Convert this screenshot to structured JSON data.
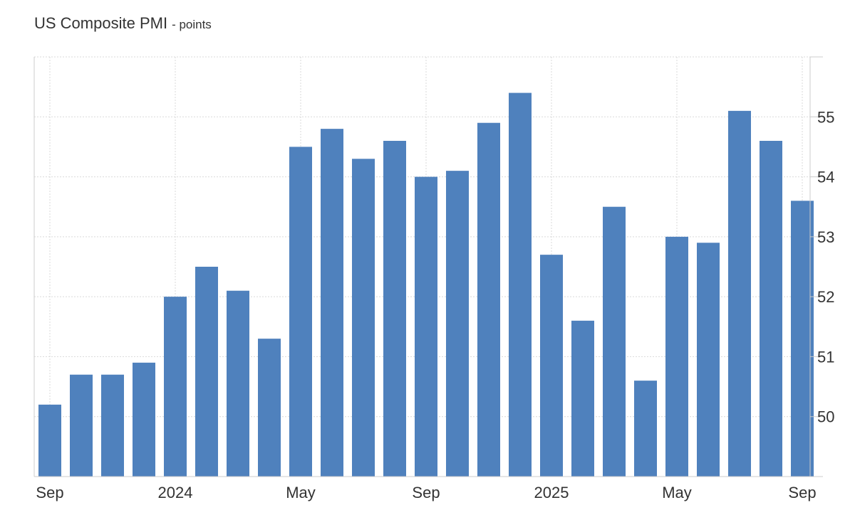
{
  "title": "US Composite PMI",
  "subtitle": "- points",
  "chart_data": {
    "type": "bar",
    "title": "US Composite PMI",
    "subtitle": "- points",
    "xlabel": "",
    "ylabel": "",
    "ylim": [
      49.0,
      56.0
    ],
    "yticks": [
      50,
      51,
      52,
      53,
      54,
      55
    ],
    "y_axis_position": "right",
    "grid": true,
    "bar_color": "#4f81bd",
    "categories": [
      "2023-09",
      "2023-10",
      "2023-11",
      "2023-12",
      "2024-01",
      "2024-02",
      "2024-03",
      "2024-04",
      "2024-05",
      "2024-06",
      "2024-07",
      "2024-08",
      "2024-09",
      "2024-10",
      "2024-11",
      "2024-12",
      "2025-01",
      "2025-02",
      "2025-03",
      "2025-04",
      "2025-05",
      "2025-06",
      "2025-07",
      "2025-08",
      "2025-09"
    ],
    "values": [
      50.2,
      50.7,
      50.7,
      50.9,
      52.0,
      52.5,
      52.1,
      51.3,
      54.5,
      54.8,
      54.3,
      54.6,
      54.0,
      54.1,
      54.9,
      55.4,
      52.7,
      51.6,
      53.5,
      50.6,
      53.0,
      52.9,
      55.1,
      54.6,
      53.6
    ],
    "x_tick_labels": [
      {
        "index": 0,
        "label": "Sep"
      },
      {
        "index": 4,
        "label": "2024"
      },
      {
        "index": 8,
        "label": "May"
      },
      {
        "index": 12,
        "label": "Sep"
      },
      {
        "index": 16,
        "label": "2025"
      },
      {
        "index": 20,
        "label": "May"
      },
      {
        "index": 24,
        "label": "Sep"
      }
    ]
  }
}
